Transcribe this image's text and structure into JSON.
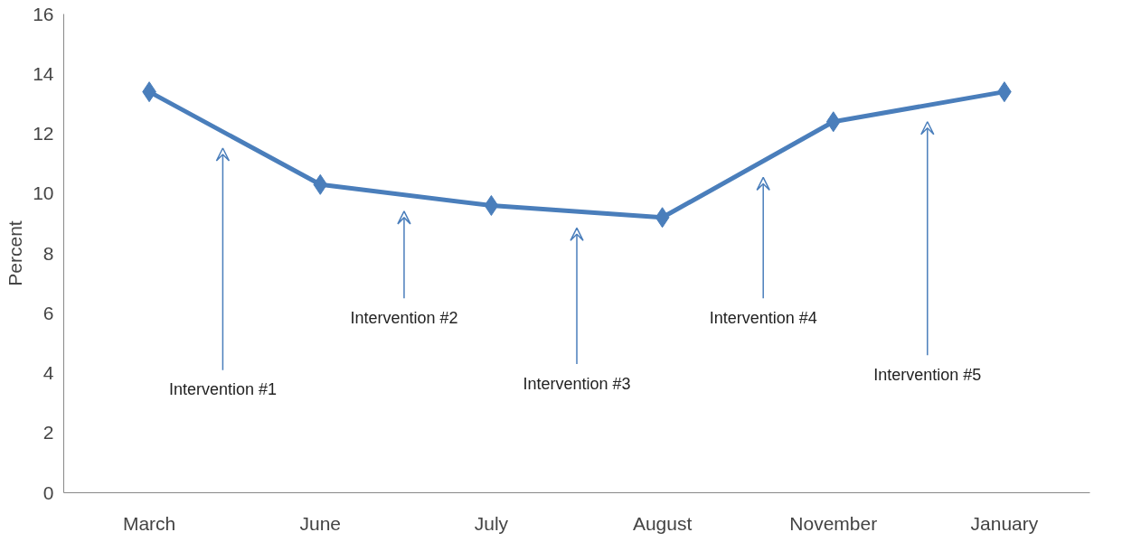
{
  "chart_data": {
    "type": "line",
    "ylabel": "Percent",
    "categories": [
      "March",
      "June",
      "July",
      "August",
      "November",
      "January"
    ],
    "series": [
      {
        "color": "#4a7ebb",
        "values": [
          13.4,
          10.3,
          9.6,
          9.2,
          12.4,
          13.4
        ]
      }
    ],
    "ylim": [
      0,
      16
    ],
    "yticks": [
      0,
      2,
      4,
      6,
      8,
      10,
      12,
      14,
      16
    ],
    "grid": false,
    "marker": "diamond",
    "line_style": "solid",
    "annotations": [
      "Intervention #1",
      "Intervention #2",
      "Intervention #3",
      "Intervention #4",
      "Intervention #5"
    ]
  }
}
